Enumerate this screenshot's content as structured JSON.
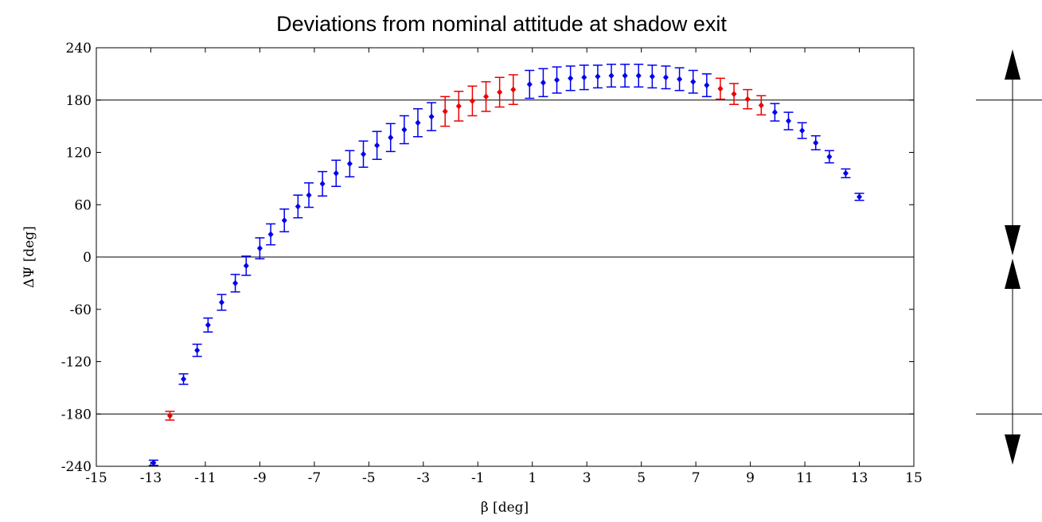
{
  "chart_data": {
    "type": "scatter",
    "title": "Deviations from nominal attitude at shadow exit",
    "xlabel": "β [deg]",
    "ylabel": "ΔΨ [deg]",
    "xlim": [
      -15,
      15
    ],
    "ylim": [
      -240,
      240
    ],
    "xticks": [
      -15,
      -13,
      -11,
      -9,
      -7,
      -5,
      -3,
      -1,
      1,
      3,
      5,
      7,
      9,
      11,
      13,
      15
    ],
    "yticks": [
      -240,
      -180,
      -120,
      -60,
      0,
      60,
      120,
      180,
      240
    ],
    "reference_lines": [
      -180,
      0,
      180
    ],
    "grid": false,
    "colors": {
      "blue": "#0000ee",
      "red": "#ee0000"
    },
    "points": [
      {
        "x": -12.9,
        "y": -236,
        "err": 3,
        "color": "blue"
      },
      {
        "x": -12.3,
        "y": -182,
        "err": 5,
        "color": "red"
      },
      {
        "x": -11.8,
        "y": -140,
        "err": 6,
        "color": "blue"
      },
      {
        "x": -11.3,
        "y": -107,
        "err": 7,
        "color": "blue"
      },
      {
        "x": -10.9,
        "y": -78,
        "err": 8,
        "color": "blue"
      },
      {
        "x": -10.4,
        "y": -52,
        "err": 9,
        "color": "blue"
      },
      {
        "x": -9.9,
        "y": -30,
        "err": 10,
        "color": "blue"
      },
      {
        "x": -9.5,
        "y": -10,
        "err": 11,
        "color": "blue"
      },
      {
        "x": -9.0,
        "y": 10,
        "err": 12,
        "color": "blue"
      },
      {
        "x": -8.6,
        "y": 26,
        "err": 12,
        "color": "blue"
      },
      {
        "x": -8.1,
        "y": 42,
        "err": 13,
        "color": "blue"
      },
      {
        "x": -7.6,
        "y": 58,
        "err": 13,
        "color": "blue"
      },
      {
        "x": -7.2,
        "y": 71,
        "err": 14,
        "color": "blue"
      },
      {
        "x": -6.7,
        "y": 84,
        "err": 14,
        "color": "blue"
      },
      {
        "x": -6.2,
        "y": 96,
        "err": 15,
        "color": "blue"
      },
      {
        "x": -5.7,
        "y": 107,
        "err": 15,
        "color": "blue"
      },
      {
        "x": -5.2,
        "y": 118,
        "err": 15,
        "color": "blue"
      },
      {
        "x": -4.7,
        "y": 128,
        "err": 16,
        "color": "blue"
      },
      {
        "x": -4.2,
        "y": 137,
        "err": 16,
        "color": "blue"
      },
      {
        "x": -3.7,
        "y": 146,
        "err": 16,
        "color": "blue"
      },
      {
        "x": -3.2,
        "y": 154,
        "err": 16,
        "color": "blue"
      },
      {
        "x": -2.7,
        "y": 161,
        "err": 16,
        "color": "blue"
      },
      {
        "x": -2.2,
        "y": 167,
        "err": 17,
        "color": "red"
      },
      {
        "x": -1.7,
        "y": 173,
        "err": 17,
        "color": "red"
      },
      {
        "x": -1.2,
        "y": 179,
        "err": 17,
        "color": "red"
      },
      {
        "x": -0.7,
        "y": 184,
        "err": 17,
        "color": "red"
      },
      {
        "x": -0.2,
        "y": 189,
        "err": 17,
        "color": "red"
      },
      {
        "x": 0.3,
        "y": 192,
        "err": 17,
        "color": "red"
      },
      {
        "x": 0.9,
        "y": 198,
        "err": 16,
        "color": "blue"
      },
      {
        "x": 1.4,
        "y": 200,
        "err": 16,
        "color": "blue"
      },
      {
        "x": 1.9,
        "y": 203,
        "err": 15,
        "color": "blue"
      },
      {
        "x": 2.4,
        "y": 205,
        "err": 14,
        "color": "blue"
      },
      {
        "x": 2.9,
        "y": 206,
        "err": 14,
        "color": "blue"
      },
      {
        "x": 3.4,
        "y": 207,
        "err": 13,
        "color": "blue"
      },
      {
        "x": 3.9,
        "y": 208,
        "err": 13,
        "color": "blue"
      },
      {
        "x": 4.4,
        "y": 208,
        "err": 13,
        "color": "blue"
      },
      {
        "x": 4.9,
        "y": 208,
        "err": 13,
        "color": "blue"
      },
      {
        "x": 5.4,
        "y": 207,
        "err": 13,
        "color": "blue"
      },
      {
        "x": 5.9,
        "y": 206,
        "err": 13,
        "color": "blue"
      },
      {
        "x": 6.4,
        "y": 204,
        "err": 13,
        "color": "blue"
      },
      {
        "x": 6.9,
        "y": 201,
        "err": 13,
        "color": "blue"
      },
      {
        "x": 7.4,
        "y": 197,
        "err": 13,
        "color": "blue"
      },
      {
        "x": 7.9,
        "y": 193,
        "err": 12,
        "color": "red"
      },
      {
        "x": 8.4,
        "y": 187,
        "err": 12,
        "color": "red"
      },
      {
        "x": 8.9,
        "y": 181,
        "err": 11,
        "color": "red"
      },
      {
        "x": 9.4,
        "y": 174,
        "err": 11,
        "color": "red"
      },
      {
        "x": 9.9,
        "y": 166,
        "err": 10,
        "color": "blue"
      },
      {
        "x": 10.4,
        "y": 156,
        "err": 10,
        "color": "blue"
      },
      {
        "x": 10.9,
        "y": 145,
        "err": 9,
        "color": "blue"
      },
      {
        "x": 11.4,
        "y": 131,
        "err": 8,
        "color": "blue"
      },
      {
        "x": 11.9,
        "y": 115,
        "err": 7,
        "color": "blue"
      },
      {
        "x": 12.5,
        "y": 96,
        "err": 5,
        "color": "blue"
      },
      {
        "x": 13.0,
        "y": 69,
        "err": 4,
        "color": "blue"
      }
    ]
  },
  "annotation": {
    "lines_y": [
      180,
      -180
    ],
    "arrows": [
      {
        "from": 180,
        "to": 240,
        "direction": "up"
      },
      {
        "from": 180,
        "to": 0,
        "direction": "down"
      },
      {
        "from": -180,
        "to": 0,
        "direction": "up"
      },
      {
        "from": -180,
        "to": -240,
        "direction": "down"
      }
    ]
  }
}
